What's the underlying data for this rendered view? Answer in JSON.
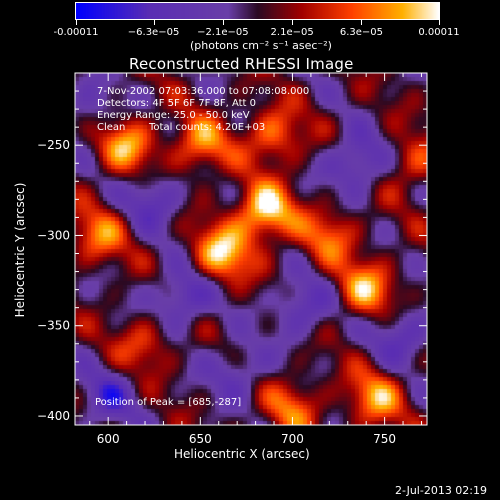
{
  "colors": {
    "background": "#000000",
    "foreground": "#ffffff",
    "colormap": [
      "#0000ff",
      "#5a2db4",
      "#6a3fa8",
      "#2a0a24",
      "#a00000",
      "#ff4000",
      "#ffb000",
      "#ffffff"
    ]
  },
  "colorbar": {
    "range": [
      -0.00011,
      0.00011
    ],
    "tick_labels": [
      "-0.00011",
      "−6.3e−05",
      "−2.1e−05",
      "2.1e−05",
      "6.3e−05",
      "0.00011"
    ],
    "tick_values": [
      -0.00011,
      -6.3e-05,
      -2.1e-05,
      2.1e-05,
      6.3e-05,
      0.00011
    ],
    "unit_label": "(photons cm⁻² s⁻¹ asec⁻²)"
  },
  "chart_data": {
    "type": "heatmap",
    "title": "Reconstructed RHESSI Image",
    "xlabel": "Heliocentric X (arcsec)",
    "ylabel": "Heliocentric Y (arcsec)",
    "xlim": [
      582,
      773
    ],
    "ylim": [
      -405,
      -210
    ],
    "xticks": [
      600,
      650,
      700,
      750
    ],
    "yticks": [
      -250,
      -300,
      -350,
      -400
    ],
    "xtick_labels": [
      "600",
      "650",
      "700",
      "750"
    ],
    "ytick_labels": [
      "−250",
      "−300",
      "−350",
      "−400"
    ],
    "value_range": [
      -0.00011,
      0.00011
    ],
    "sources": [
      {
        "x": 662,
        "y": -310,
        "v": 9.5e-05
      },
      {
        "x": 685,
        "y": -287,
        "v": 0.00011
      },
      {
        "x": 610,
        "y": -250,
        "v": 8e-05
      },
      {
        "x": 650,
        "y": -250,
        "v": 7.5e-05
      },
      {
        "x": 690,
        "y": -245,
        "v": 7e-05
      },
      {
        "x": 740,
        "y": -330,
        "v": 8e-05
      },
      {
        "x": 745,
        "y": -390,
        "v": 7.5e-05
      },
      {
        "x": 595,
        "y": -300,
        "v": 6.5e-05
      },
      {
        "x": 720,
        "y": -300,
        "v": 6e-05
      },
      {
        "x": 620,
        "y": -360,
        "v": 5e-05
      },
      {
        "x": 700,
        "y": -395,
        "v": 6e-05
      },
      {
        "x": 765,
        "y": -260,
        "v": 5e-05
      },
      {
        "x": 640,
        "y": -335,
        "v": -7e-05
      },
      {
        "x": 705,
        "y": -340,
        "v": -6e-05
      },
      {
        "x": 735,
        "y": -260,
        "v": -7e-05
      },
      {
        "x": 600,
        "y": -390,
        "v": -6e-05
      },
      {
        "x": 670,
        "y": -375,
        "v": -5e-05
      },
      {
        "x": 760,
        "y": -355,
        "v": -6e-05
      },
      {
        "x": 625,
        "y": -280,
        "v": -6e-05
      },
      {
        "x": 590,
        "y": -230,
        "v": -4e-05
      }
    ],
    "annotations": {
      "time_range": "7-Nov-2002 07:03:36.000 to 07:08:08.000",
      "detectors": "Detectors: 4F 5F 6F 7F 8F, Att 0",
      "energy": "Energy Range: 25.0 - 50.0 keV",
      "method": "Clean",
      "counts": "Total counts: 4.20E+03",
      "peak": "Position of Peak = [685,-287]"
    }
  },
  "footer": {
    "timestamp": "2-Jul-2013 02:19"
  }
}
